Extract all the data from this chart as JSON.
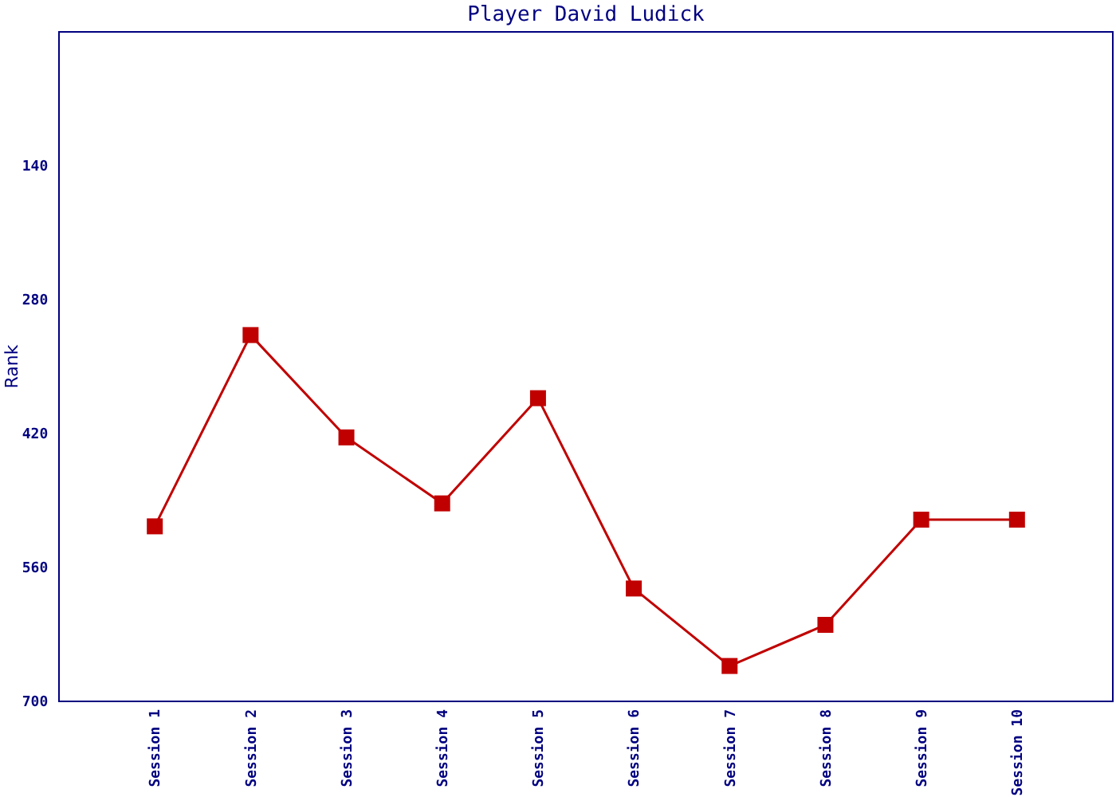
{
  "chart_data": {
    "type": "line",
    "title": "Player David Ludick",
    "ylabel": "Rank",
    "categories": [
      "Session 1",
      "Session 2",
      "Session 3",
      "Session 4",
      "Session 5",
      "Session 6",
      "Session 7",
      "Session 8",
      "Session 9",
      "Session 10"
    ],
    "series": [
      {
        "color": "#c00000",
        "values": [
          517,
          317,
          424,
          493,
          383,
          582,
          663,
          620,
          510,
          510
        ]
      }
    ],
    "ylim": [
      700,
      0
    ],
    "yticks": [
      140,
      280,
      420,
      560,
      700
    ],
    "marker": "square",
    "line_style": "solid"
  }
}
